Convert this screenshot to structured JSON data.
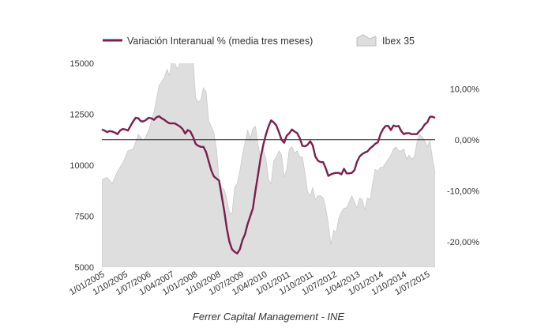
{
  "chart_data": {
    "type": "line",
    "legend": {
      "position": "top",
      "entries": [
        {
          "label": "Variación Interanual % (media tres meses)",
          "kind": "line",
          "color": "#7a1f4e"
        },
        {
          "label": "Ibex 35",
          "kind": "area",
          "color": "#dedede"
        }
      ]
    },
    "source": "Ferrer Capital Management - INE",
    "grid": false,
    "x_ticks": [
      "1/01/2005",
      "1/10/2005",
      "1/07/2006",
      "1/04/2007",
      "1/01/2008",
      "1/10/2008",
      "1/07/2009",
      "1/04/2010",
      "1/01/2011",
      "1/10/2011",
      "1/07/2012",
      "1/04/2013",
      "1/01/2014",
      "1/10/2014",
      "1/07/2015"
    ],
    "y_left": {
      "ticks": [
        "15000",
        "12500",
        "10000",
        "7500",
        "5000"
      ],
      "range": [
        5000,
        15000
      ]
    },
    "y_right": {
      "ticks": [
        "10,00%",
        "0,00%",
        "-10,00%",
        "-20,00%"
      ],
      "range": [
        -25,
        15
      ]
    },
    "x_range": [
      "2005-01",
      "2015-09"
    ],
    "series": [
      {
        "name": "Ibex 35",
        "axis": "left",
        "type": "area",
        "points": [
          [
            "2005-01",
            9300
          ],
          [
            "2005-03",
            9400
          ],
          [
            "2005-05",
            9100
          ],
          [
            "2005-07",
            9700
          ],
          [
            "2005-09",
            10100
          ],
          [
            "2005-11",
            10700
          ],
          [
            "2006-01",
            10800
          ],
          [
            "2006-03",
            11500
          ],
          [
            "2006-05",
            11200
          ],
          [
            "2006-07",
            11700
          ],
          [
            "2006-09",
            12600
          ],
          [
            "2006-11",
            13900
          ],
          [
            "2007-01",
            14300
          ],
          [
            "2007-02",
            14700
          ],
          [
            "2007-03",
            14400
          ],
          [
            "2007-04",
            15300
          ],
          [
            "2007-06",
            14700
          ],
          [
            "2007-08",
            15300
          ],
          [
            "2007-10",
            15400
          ],
          [
            "2007-11",
            15800
          ],
          [
            "2007-12",
            15200
          ],
          [
            "2008-01",
            13300
          ],
          [
            "2008-02",
            13100
          ],
          [
            "2008-03",
            13200
          ],
          [
            "2008-04",
            13800
          ],
          [
            "2008-05",
            13600
          ],
          [
            "2008-06",
            12200
          ],
          [
            "2008-07",
            11900
          ],
          [
            "2008-08",
            11600
          ],
          [
            "2008-09",
            10800
          ],
          [
            "2008-10",
            9300
          ],
          [
            "2008-11",
            8900
          ],
          [
            "2008-12",
            8800
          ],
          [
            "2009-01",
            8300
          ],
          [
            "2009-02",
            7700
          ],
          [
            "2009-03",
            7600
          ],
          [
            "2009-04",
            8900
          ],
          [
            "2009-05",
            9100
          ],
          [
            "2009-06",
            9700
          ],
          [
            "2009-07",
            10500
          ],
          [
            "2009-08",
            11100
          ],
          [
            "2009-09",
            11700
          ],
          [
            "2009-10",
            11300
          ],
          [
            "2009-11",
            11800
          ],
          [
            "2009-12",
            11900
          ],
          [
            "2010-01",
            11000
          ],
          [
            "2010-02",
            10300
          ],
          [
            "2010-03",
            10800
          ],
          [
            "2010-04",
            10300
          ],
          [
            "2010-05",
            9300
          ],
          [
            "2010-06",
            9100
          ],
          [
            "2010-07",
            10200
          ],
          [
            "2010-08",
            10400
          ],
          [
            "2010-09",
            10700
          ],
          [
            "2010-10",
            10500
          ],
          [
            "2010-11",
            9400
          ],
          [
            "2010-12",
            9800
          ],
          [
            "2011-01",
            10800
          ],
          [
            "2011-02",
            10900
          ],
          [
            "2011-03",
            10600
          ],
          [
            "2011-04",
            10700
          ],
          [
            "2011-05",
            10400
          ],
          [
            "2011-06",
            10400
          ],
          [
            "2011-07",
            9600
          ],
          [
            "2011-08",
            8700
          ],
          [
            "2011-09",
            8500
          ],
          [
            "2011-10",
            8900
          ],
          [
            "2011-11",
            8300
          ],
          [
            "2011-12",
            8500
          ],
          [
            "2012-01",
            8500
          ],
          [
            "2012-02",
            8400
          ],
          [
            "2012-03",
            7900
          ],
          [
            "2012-04",
            7100
          ],
          [
            "2012-05",
            6100
          ],
          [
            "2012-06",
            6800
          ],
          [
            "2012-07",
            6700
          ],
          [
            "2012-08",
            7400
          ],
          [
            "2012-09",
            7700
          ],
          [
            "2012-10",
            7900
          ],
          [
            "2012-11",
            7900
          ],
          [
            "2012-12",
            8200
          ],
          [
            "2013-01",
            8500
          ],
          [
            "2013-02",
            8200
          ],
          [
            "2013-03",
            7900
          ],
          [
            "2013-04",
            8400
          ],
          [
            "2013-05",
            8300
          ],
          [
            "2013-06",
            7800
          ],
          [
            "2013-07",
            8400
          ],
          [
            "2013-08",
            8300
          ],
          [
            "2013-09",
            9100
          ],
          [
            "2013-10",
            9800
          ],
          [
            "2013-11",
            9700
          ],
          [
            "2013-12",
            9900
          ],
          [
            "2014-01",
            9900
          ],
          [
            "2014-02",
            10100
          ],
          [
            "2014-03",
            10300
          ],
          [
            "2014-04",
            10500
          ],
          [
            "2014-05",
            10800
          ],
          [
            "2014-06",
            10900
          ],
          [
            "2014-07",
            10700
          ],
          [
            "2014-08",
            10700
          ],
          [
            "2014-09",
            10800
          ],
          [
            "2014-10",
            10300
          ],
          [
            "2014-11",
            10500
          ],
          [
            "2014-12",
            10300
          ],
          [
            "2015-01",
            10400
          ],
          [
            "2015-02",
            11100
          ],
          [
            "2015-03",
            11500
          ],
          [
            "2015-04",
            11400
          ],
          [
            "2015-05",
            11200
          ],
          [
            "2015-06",
            10900
          ],
          [
            "2015-07",
            11200
          ],
          [
            "2015-08",
            10300
          ],
          [
            "2015-09",
            9600
          ]
        ]
      },
      {
        "name": "Variación Interanual % (media tres meses)",
        "axis": "right",
        "type": "line",
        "points": [
          [
            "2005-01",
            2.0
          ],
          [
            "2005-02",
            1.8
          ],
          [
            "2005-03",
            1.5
          ],
          [
            "2005-04",
            1.7
          ],
          [
            "2005-05",
            1.6
          ],
          [
            "2005-06",
            1.4
          ],
          [
            "2005-07",
            1.1
          ],
          [
            "2005-08",
            1.8
          ],
          [
            "2005-09",
            2.1
          ],
          [
            "2005-10",
            2.0
          ],
          [
            "2005-11",
            1.8
          ],
          [
            "2005-12",
            2.7
          ],
          [
            "2006-01",
            3.6
          ],
          [
            "2006-02",
            4.3
          ],
          [
            "2006-03",
            4.2
          ],
          [
            "2006-04",
            3.6
          ],
          [
            "2006-05",
            3.6
          ],
          [
            "2006-06",
            3.9
          ],
          [
            "2006-07",
            4.3
          ],
          [
            "2006-08",
            4.2
          ],
          [
            "2006-09",
            3.9
          ],
          [
            "2006-10",
            4.4
          ],
          [
            "2006-11",
            4.6
          ],
          [
            "2006-12",
            4.2
          ],
          [
            "2007-01",
            3.9
          ],
          [
            "2007-02",
            3.5
          ],
          [
            "2007-03",
            3.2
          ],
          [
            "2007-04",
            3.2
          ],
          [
            "2007-05",
            3.2
          ],
          [
            "2007-06",
            2.9
          ],
          [
            "2007-07",
            2.6
          ],
          [
            "2007-08",
            2.1
          ],
          [
            "2007-09",
            1.2
          ],
          [
            "2007-10",
            1.9
          ],
          [
            "2007-11",
            1.6
          ],
          [
            "2007-12",
            0.6
          ],
          [
            "2008-01",
            -0.8
          ],
          [
            "2008-02",
            -1.2
          ],
          [
            "2008-03",
            -1.4
          ],
          [
            "2008-04",
            -1.4
          ],
          [
            "2008-05",
            -2.4
          ],
          [
            "2008-06",
            -4.2
          ],
          [
            "2008-07",
            -6.0
          ],
          [
            "2008-08",
            -7.2
          ],
          [
            "2008-09",
            -7.6
          ],
          [
            "2008-10",
            -8.0
          ],
          [
            "2008-11",
            -11.0
          ],
          [
            "2008-12",
            -14.0
          ],
          [
            "2009-01",
            -17.5
          ],
          [
            "2009-02",
            -20.0
          ],
          [
            "2009-03",
            -21.5
          ],
          [
            "2009-04",
            -22.0
          ],
          [
            "2009-05",
            -22.3
          ],
          [
            "2009-06",
            -21.5
          ],
          [
            "2009-07",
            -19.7
          ],
          [
            "2009-08",
            -18.5
          ],
          [
            "2009-09",
            -16.5
          ],
          [
            "2009-10",
            -15.0
          ],
          [
            "2009-11",
            -13.5
          ],
          [
            "2009-12",
            -10.0
          ],
          [
            "2010-01",
            -6.8
          ],
          [
            "2010-02",
            -3.5
          ],
          [
            "2010-03",
            -1.0
          ],
          [
            "2010-04",
            1.0
          ],
          [
            "2010-05",
            2.6
          ],
          [
            "2010-06",
            3.8
          ],
          [
            "2010-07",
            3.4
          ],
          [
            "2010-08",
            2.8
          ],
          [
            "2010-09",
            1.5
          ],
          [
            "2010-10",
            0.0
          ],
          [
            "2010-11",
            -0.6
          ],
          [
            "2010-12",
            0.8
          ],
          [
            "2011-01",
            1.3
          ],
          [
            "2011-02",
            2.0
          ],
          [
            "2011-03",
            1.6
          ],
          [
            "2011-04",
            1.3
          ],
          [
            "2011-05",
            0.3
          ],
          [
            "2011-06",
            -1.2
          ],
          [
            "2011-07",
            -1.3
          ],
          [
            "2011-08",
            -1.0
          ],
          [
            "2011-09",
            -0.3
          ],
          [
            "2011-10",
            -1.1
          ],
          [
            "2011-11",
            -3.3
          ],
          [
            "2011-12",
            -4.1
          ],
          [
            "2012-01",
            -4.4
          ],
          [
            "2012-02",
            -4.4
          ],
          [
            "2012-03",
            -5.6
          ],
          [
            "2012-04",
            -7.1
          ],
          [
            "2012-05",
            -6.8
          ],
          [
            "2012-06",
            -6.6
          ],
          [
            "2012-07",
            -6.5
          ],
          [
            "2012-08",
            -6.5
          ],
          [
            "2012-09",
            -6.8
          ],
          [
            "2012-10",
            -5.7
          ],
          [
            "2012-11",
            -6.6
          ],
          [
            "2012-12",
            -6.6
          ],
          [
            "2013-01",
            -6.5
          ],
          [
            "2013-02",
            -6.0
          ],
          [
            "2013-03",
            -4.3
          ],
          [
            "2013-04",
            -3.3
          ],
          [
            "2013-05",
            -2.8
          ],
          [
            "2013-06",
            -2.5
          ],
          [
            "2013-07",
            -2.3
          ],
          [
            "2013-08",
            -1.7
          ],
          [
            "2013-09",
            -1.3
          ],
          [
            "2013-10",
            -0.8
          ],
          [
            "2013-11",
            -0.5
          ],
          [
            "2013-12",
            1.1
          ],
          [
            "2014-01",
            2.1
          ],
          [
            "2014-02",
            2.7
          ],
          [
            "2014-03",
            2.7
          ],
          [
            "2014-04",
            1.9
          ],
          [
            "2014-05",
            2.8
          ],
          [
            "2014-06",
            2.6
          ],
          [
            "2014-07",
            2.7
          ],
          [
            "2014-08",
            1.7
          ],
          [
            "2014-09",
            1.1
          ],
          [
            "2014-10",
            1.3
          ],
          [
            "2014-11",
            1.3
          ],
          [
            "2014-12",
            1.1
          ],
          [
            "2015-01",
            1.1
          ],
          [
            "2015-02",
            1.1
          ],
          [
            "2015-03",
            1.7
          ],
          [
            "2015-04",
            2.2
          ],
          [
            "2015-05",
            3.0
          ],
          [
            "2015-06",
            3.4
          ],
          [
            "2015-07",
            4.5
          ],
          [
            "2015-08",
            4.5
          ],
          [
            "2015-09",
            4.3
          ]
        ]
      }
    ]
  }
}
